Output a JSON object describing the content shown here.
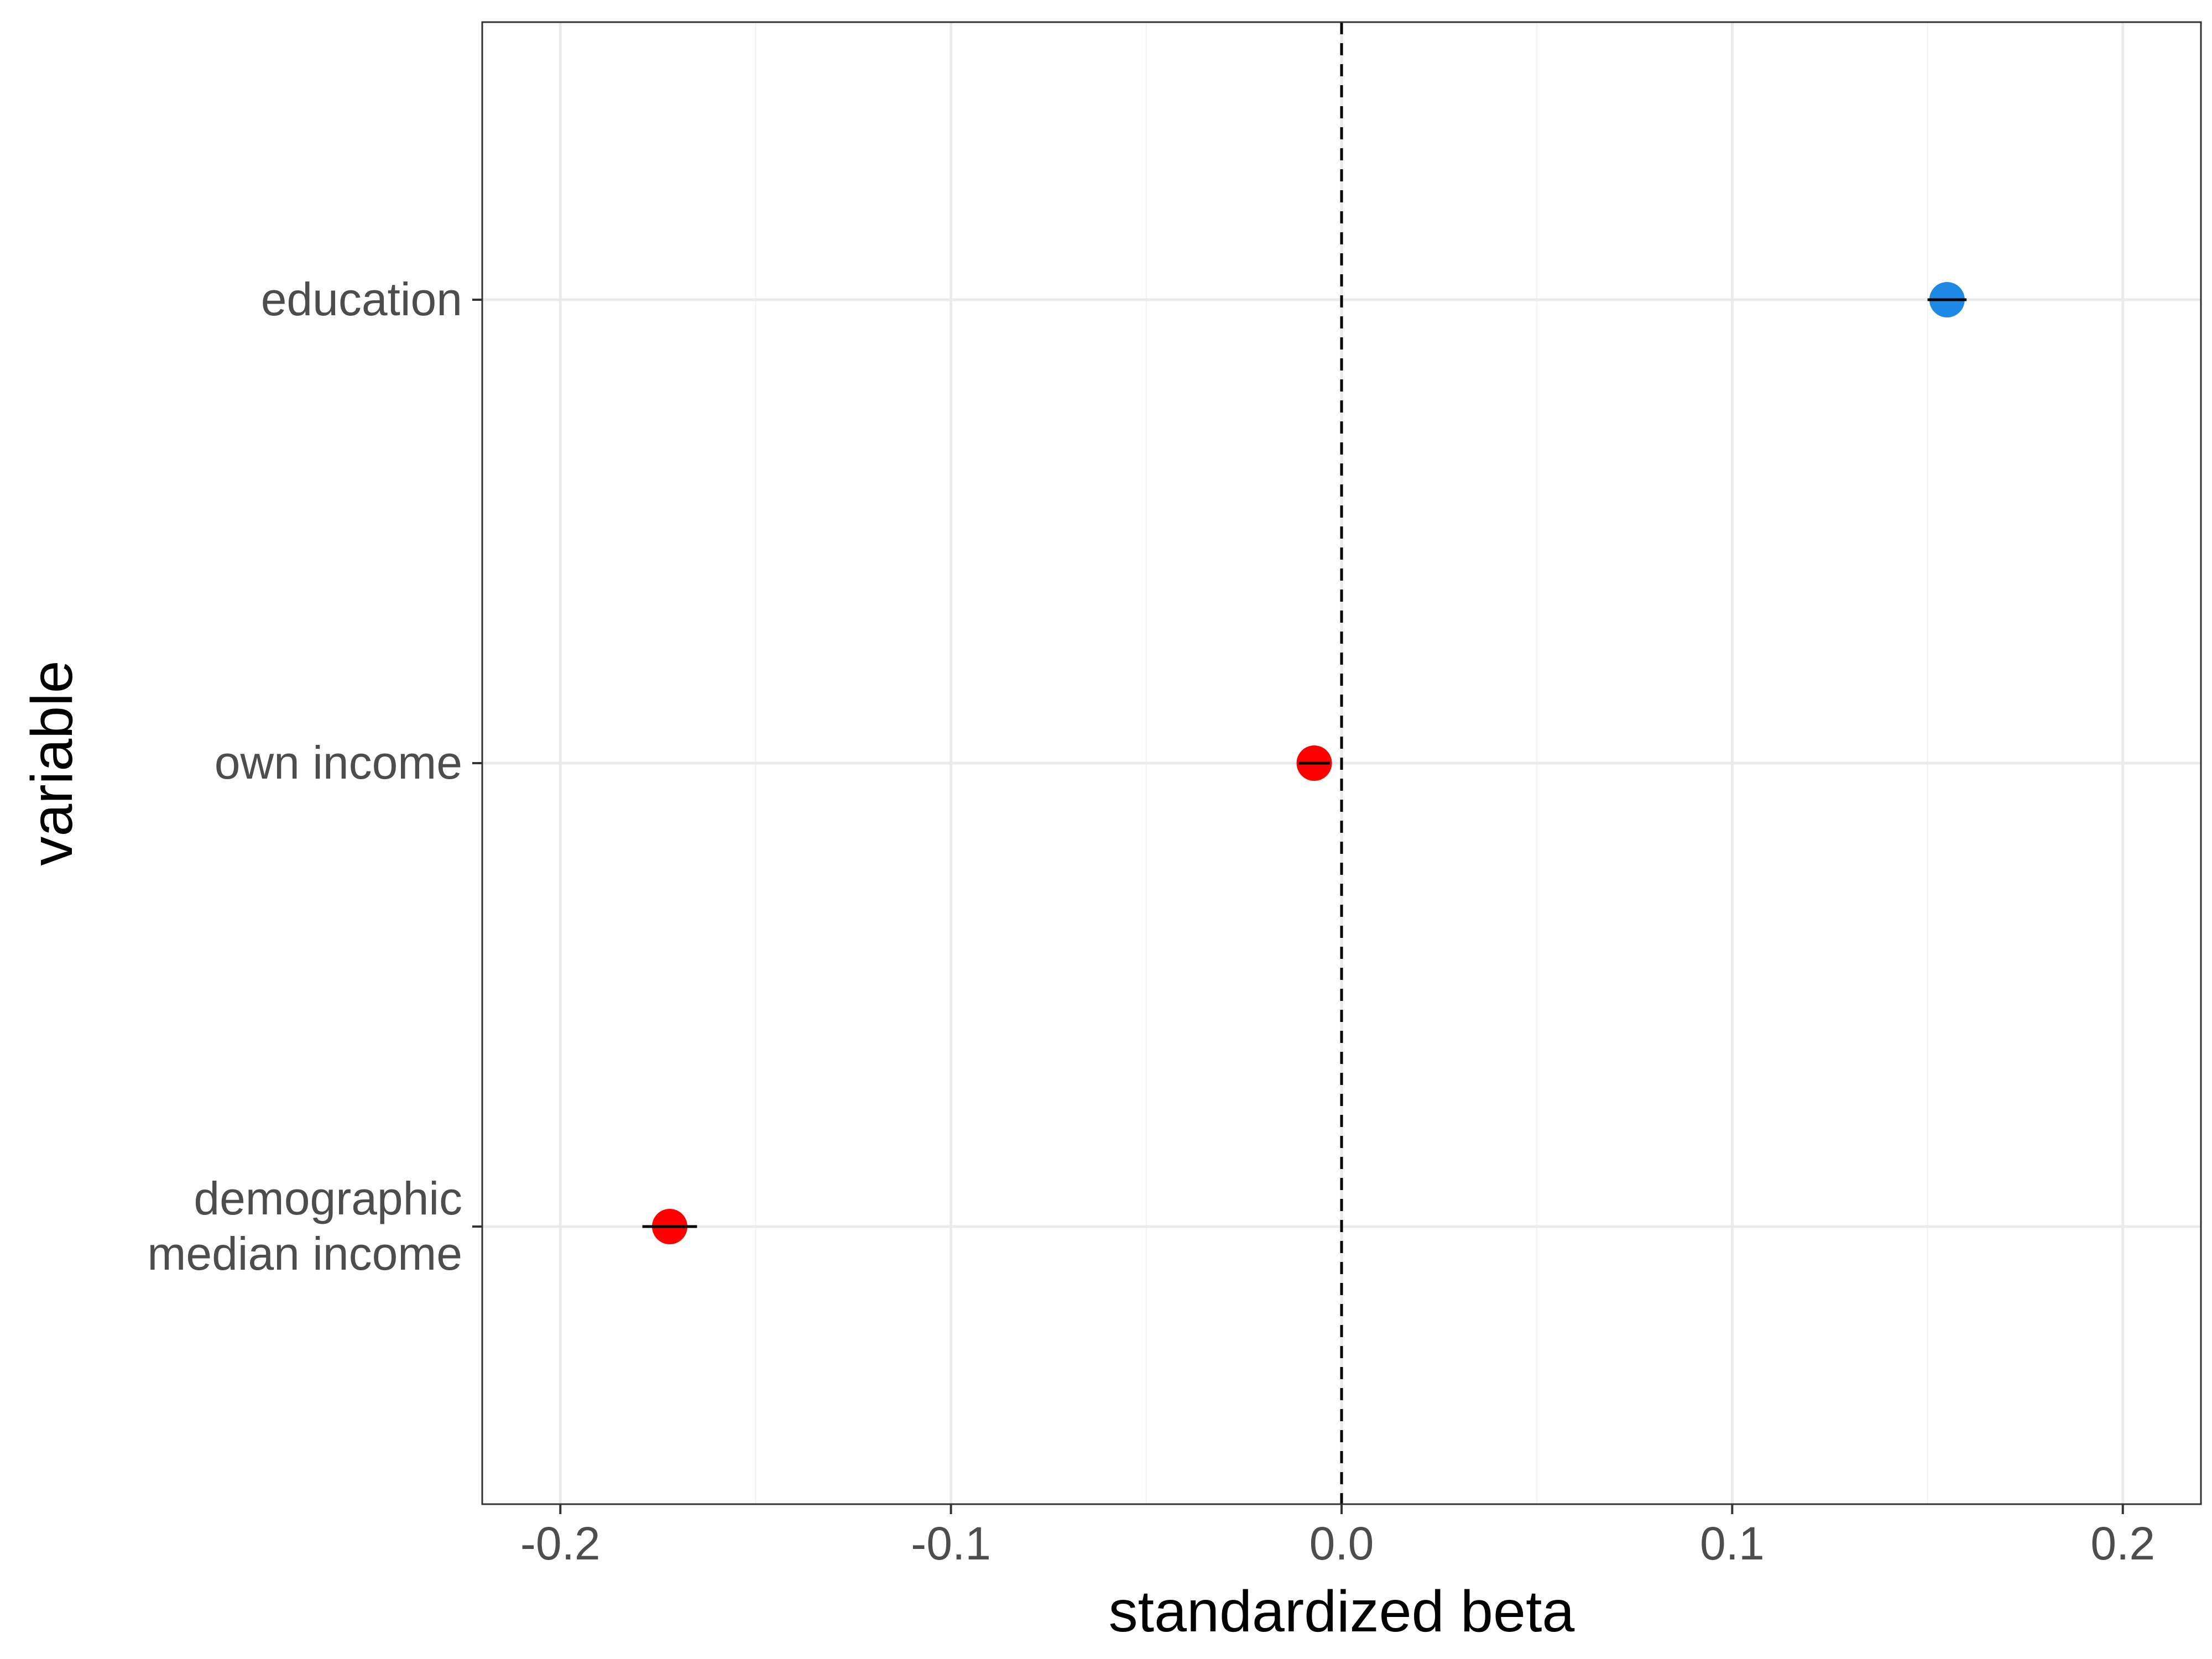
{
  "chart_data": {
    "type": "scatter",
    "title": "",
    "xlabel": "standardized beta",
    "ylabel": "variable",
    "xlim": [
      -0.22,
      0.22
    ],
    "x_ticks": [
      -0.2,
      -0.1,
      0.0,
      0.1,
      0.2
    ],
    "x_tick_labels": [
      "-0.2",
      "-0.1",
      "0.0",
      "0.1",
      "0.2"
    ],
    "categories": [
      [
        "education"
      ],
      [
        "own income"
      ],
      [
        "demographic",
        "median income"
      ]
    ],
    "points": [
      {
        "category_index": 0,
        "x": 0.155,
        "ci": [
          0.15,
          0.16
        ],
        "color": "#1e88e5"
      },
      {
        "category_index": 1,
        "x": -0.007,
        "ci": [
          -0.011,
          -0.003
        ],
        "color": "#ff0000"
      },
      {
        "category_index": 2,
        "x": -0.172,
        "ci": [
          -0.179,
          -0.165
        ],
        "color": "#ff0000"
      }
    ],
    "reference_line": {
      "x": 0.0,
      "style": "dashed"
    },
    "grid": true,
    "legend": "none"
  }
}
